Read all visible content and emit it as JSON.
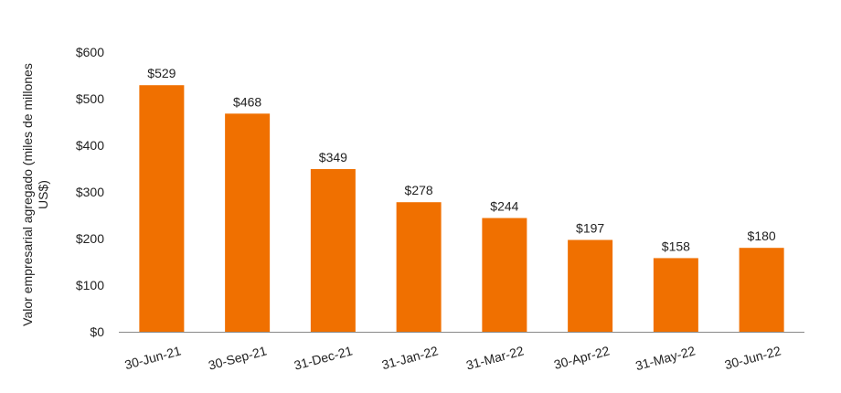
{
  "chart_data": {
    "type": "bar",
    "categories": [
      "30-Jun-21",
      "30-Sep-21",
      "31-Dec-21",
      "31-Jan-22",
      "31-Mar-22",
      "30-Apr-22",
      "31-May-22",
      "30-Jun-22"
    ],
    "values": [
      529,
      468,
      349,
      278,
      244,
      197,
      158,
      180
    ],
    "data_labels": [
      "$529",
      "$468",
      "$349",
      "$278",
      "$244",
      "$197",
      "$158",
      "$180"
    ],
    "ylabel_lines": [
      "Valor empresarial agregado (miles de millones",
      "US$)"
    ],
    "ylim": [
      0,
      600
    ],
    "yticks": [
      0,
      100,
      200,
      300,
      400,
      500,
      600
    ],
    "ytick_labels": [
      "$0",
      "$100",
      "$200",
      "$300",
      "$400",
      "$500",
      "$600"
    ],
    "bar_color": "#F07000",
    "axis_color": "#888888",
    "grid": false,
    "legend": "none"
  }
}
